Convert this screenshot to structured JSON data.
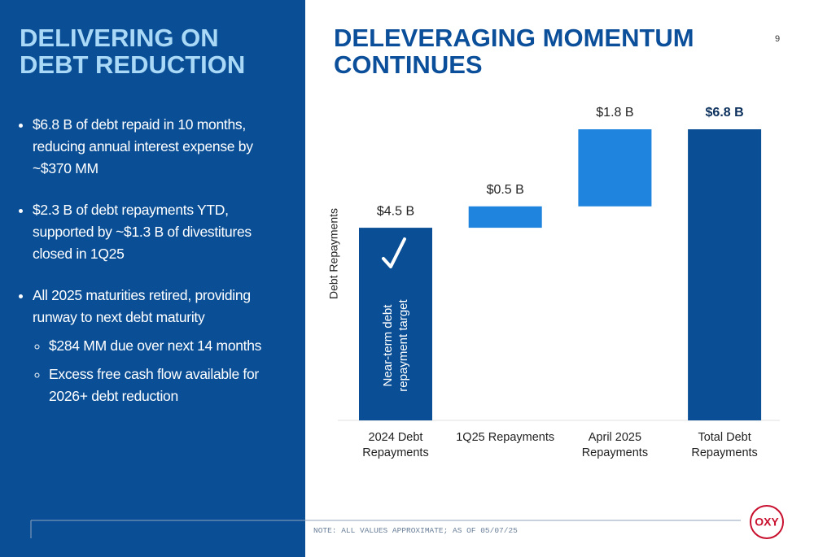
{
  "page_number": "9",
  "left": {
    "title": "DELIVERING ON DEBT REDUCTION",
    "bullets": [
      {
        "lines": [
          "$6.8 B of debt repaid in 10 months,",
          "reducing annual interest expense by",
          "~$370 MM"
        ]
      },
      {
        "lines": [
          "$2.3 B of debt repayments YTD,",
          "supported by ~$1.3 B of divestitures",
          "closed in 1Q25"
        ]
      },
      {
        "lines": [
          "All 2025 maturities retired, providing",
          "runway to next debt maturity"
        ],
        "sub": [
          {
            "lines": [
              "$284 MM due over next 14 months"
            ]
          },
          {
            "lines": [
              "Excess free cash flow available for",
              "2026+ debt reduction"
            ]
          }
        ]
      }
    ]
  },
  "chart_data": {
    "type": "waterfall",
    "title": "DELEVERAGING MOMENTUM CONTINUES",
    "y_label": "Debt Repayments",
    "categories": [
      [
        "2024 Debt",
        "Repayments"
      ],
      [
        "1Q25 Repayments"
      ],
      [
        "April 2025",
        "Repayments"
      ],
      [
        "Total Debt",
        "Repayments"
      ]
    ],
    "values": [
      4.5,
      0.5,
      1.8,
      6.8
    ],
    "value_labels": [
      "$4.5 B",
      "$0.5 B",
      "$1.8 B",
      "$6.8 B"
    ],
    "is_total": [
      false,
      false,
      false,
      true
    ],
    "colors": [
      "#0a4f96",
      "#1e84de",
      "#1e84de",
      "#0a4f96"
    ],
    "annotation": [
      "Near-term debt",
      "repayment target"
    ]
  },
  "note": "NOTE: ALL VALUES APPROXIMATE; AS OF 05/07/25",
  "logo": "OXY"
}
